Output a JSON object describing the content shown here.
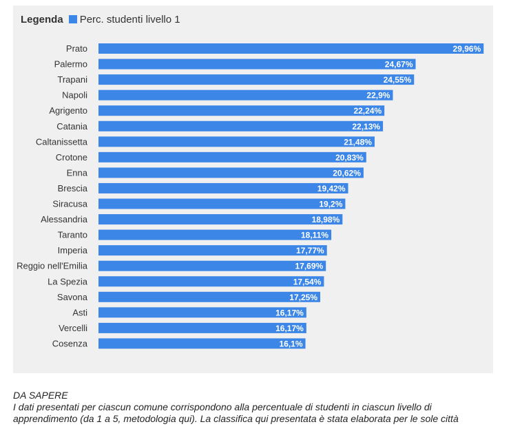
{
  "legend": {
    "title": "Legenda",
    "series_label": "Perc. studenti livello 1"
  },
  "colors": {
    "bar": "#3b86e6",
    "label_text": "#ffffff",
    "category_text": "#333333"
  },
  "chart_data": {
    "type": "bar",
    "orientation": "horizontal",
    "categories": [
      "Prato",
      "Palermo",
      "Trapani",
      "Napoli",
      "Agrigento",
      "Catania",
      "Caltanissetta",
      "Crotone",
      "Enna",
      "Brescia",
      "Siracusa",
      "Alessandria",
      "Taranto",
      "Imperia",
      "Reggio nell'Emilia",
      "La Spezia",
      "Savona",
      "Asti",
      "Vercelli",
      "Cosenza"
    ],
    "values": [
      29.96,
      24.67,
      24.55,
      22.9,
      22.24,
      22.13,
      21.48,
      20.83,
      20.62,
      19.42,
      19.2,
      18.98,
      18.11,
      17.77,
      17.69,
      17.54,
      17.25,
      16.17,
      16.17,
      16.1
    ],
    "value_labels": [
      "29,96%",
      "24,67%",
      "24,55%",
      "22,9%",
      "22,24%",
      "22,13%",
      "21,48%",
      "20,83%",
      "20,62%",
      "19,42%",
      "19,2%",
      "18,98%",
      "18,11%",
      "17,77%",
      "17,69%",
      "17,54%",
      "17,25%",
      "16,17%",
      "16,17%",
      "16,1%"
    ],
    "series": [
      {
        "name": "Perc. studenti livello 1"
      }
    ],
    "xlim": [
      0,
      30
    ],
    "grid": false,
    "legend_position": "top-left"
  },
  "note": {
    "heading": "DA SAPERE",
    "line1": "I dati presentati per ciascun comune corrispondono alla percentuale di studenti in ciascun livello di",
    "line2": "apprendimento (da 1 a 5, metodologia qui). La classifica qui presentata è stata elaborata per le sole città"
  }
}
